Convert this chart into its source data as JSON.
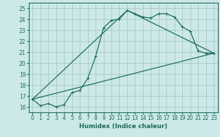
{
  "xlabel": "Humidex (Indice chaleur)",
  "background_color": "#cce8e8",
  "grid_color": "#aacccc",
  "line_color": "#1a6b5a",
  "xlim": [
    -0.5,
    23.5
  ],
  "ylim": [
    15.5,
    25.5
  ],
  "xticks": [
    0,
    1,
    2,
    3,
    4,
    5,
    6,
    7,
    8,
    9,
    10,
    11,
    12,
    13,
    14,
    15,
    16,
    17,
    18,
    19,
    20,
    21,
    22,
    23
  ],
  "yticks": [
    16,
    17,
    18,
    19,
    20,
    21,
    22,
    23,
    24,
    25
  ],
  "series1_x": [
    0,
    1,
    2,
    3,
    4,
    5,
    6,
    7,
    8,
    9,
    10,
    11,
    12,
    13,
    14,
    15,
    16,
    17,
    18,
    19,
    20,
    21,
    22,
    23
  ],
  "series1_y": [
    16.7,
    16.1,
    16.3,
    16.0,
    16.2,
    17.3,
    17.5,
    18.6,
    20.6,
    23.2,
    23.9,
    24.0,
    24.8,
    24.5,
    24.2,
    24.1,
    24.5,
    24.5,
    24.2,
    23.3,
    22.9,
    21.1,
    20.9,
    20.9
  ],
  "series3_x": [
    0,
    23
  ],
  "series3_y": [
    16.7,
    20.9
  ],
  "series4_x": [
    0,
    12,
    23
  ],
  "series4_y": [
    16.7,
    24.8,
    20.9
  ]
}
